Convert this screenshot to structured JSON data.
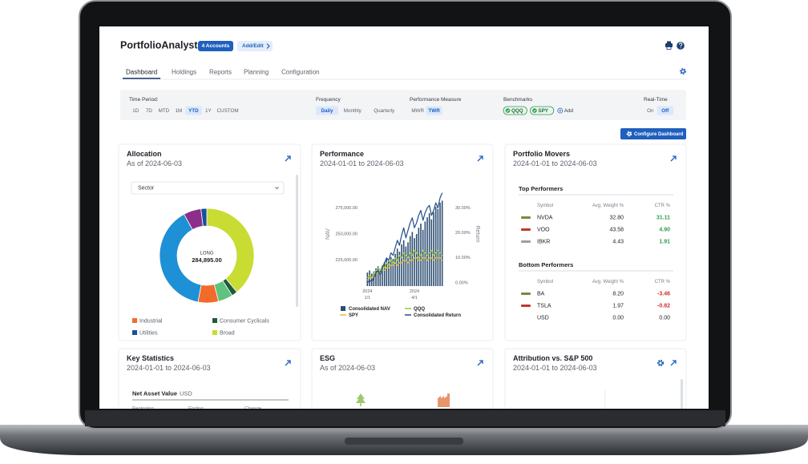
{
  "header": {
    "title": "PortfolioAnalyst",
    "accounts": "4 Accounts",
    "add_edit": "Add/Edit"
  },
  "tabs": {
    "items": [
      "Dashboard",
      "Holdings",
      "Reports",
      "Planning",
      "Configuration"
    ],
    "active": 0
  },
  "filters": [
    {
      "label": "Time Period:",
      "options": [
        "1D",
        "7D",
        "MTD",
        "1M",
        "YTD",
        "1Y",
        "CUSTOM"
      ],
      "selected": 4
    },
    {
      "label": "Frequency",
      "options": [
        "Daily",
        "Monthly",
        "Quarterly"
      ],
      "selected": 0
    },
    {
      "label": "Performance Measure",
      "options": [
        "MWR",
        "TWR"
      ],
      "selected": 1
    },
    {
      "label": "Benchmarks",
      "options": [
        "QQQ",
        "SPY"
      ],
      "add": "Add"
    },
    {
      "label": "Real-Time",
      "options": [
        "On",
        "Off"
      ],
      "selected": 1
    }
  ],
  "configure_button": "Configure Dashboard",
  "allocation": {
    "title": "Allocation",
    "subtitle": "As of 2024-06-03",
    "dropdown": "Sector",
    "chart": {
      "type": "pie",
      "values": [
        39,
        2,
        5,
        7,
        39,
        6,
        2
      ],
      "colors": [
        "#c9dc33",
        "#1b5e3b",
        "#5fc27e",
        "#f26b2a",
        "#1e90d6",
        "#8b2f8b",
        "#1a4f9c"
      ],
      "center_label": "LONG",
      "center_value": "284,895.00"
    },
    "legend": [
      {
        "name": "Industrial",
        "color": "#f26b2a"
      },
      {
        "name": "Consumer Cyclicals",
        "color": "#1b5e3b"
      },
      {
        "name": "Utilities",
        "color": "#1a4f9c"
      },
      {
        "name": "Broad",
        "color": "#c9dc33"
      }
    ]
  },
  "performance": {
    "title": "Performance",
    "subtitle": "2024-01-01 to 2024-06-03",
    "chart": {
      "type": "bar-line",
      "ylabel": "NAV",
      "y2label": "Return",
      "ylim": [
        200000,
        290000
      ],
      "yticks": [
        {
          "value": 275000,
          "label": "275,000.00"
        },
        {
          "value": 250000,
          "label": "250,000.00"
        },
        {
          "value": 225000,
          "label": "225,000.00"
        }
      ],
      "y2lim": [
        -1.3,
        36.2
      ],
      "y2ticks": [
        {
          "value": 30,
          "label": "30.00%"
        },
        {
          "value": 20,
          "label": "20.00%"
        },
        {
          "value": 10,
          "label": "10.00%"
        },
        {
          "value": 0,
          "label": "0.00%"
        }
      ],
      "xticks": [
        {
          "value": 0,
          "year": "2024",
          "date": "1/1"
        },
        {
          "value": 22,
          "year": "2024",
          "date": "4/1"
        }
      ],
      "series": [
        {
          "name": "Consolidated NAV",
          "kind": "bar",
          "color": "#2d4e72",
          "values": [
            213000,
            215000,
            212000,
            214000,
            217000,
            219000,
            216000,
            220000,
            223000,
            226000,
            224000,
            228000,
            226000,
            231000,
            236000,
            233000,
            240000,
            244000,
            238000,
            242000,
            248000,
            252000,
            246000,
            250000,
            256000,
            260000,
            254000,
            262000,
            266000,
            270000,
            264000,
            271000,
            276000,
            274000,
            280000,
            282000
          ]
        },
        {
          "name": "QQQ",
          "kind": "line",
          "axis": "y2",
          "color": "#9bc53d",
          "values": [
            2,
            3,
            2,
            4,
            5,
            6,
            5,
            7,
            6,
            8,
            7,
            9,
            8,
            10,
            9,
            11,
            10,
            12,
            11,
            10,
            12,
            11,
            13,
            12,
            10,
            11,
            13,
            12,
            11,
            12,
            13,
            11,
            12,
            13,
            12,
            11
          ]
        },
        {
          "name": "SPY",
          "kind": "line",
          "axis": "y2",
          "color": "#e8c12b",
          "values": [
            1,
            2,
            2,
            3,
            4,
            4,
            4,
            5,
            5,
            6,
            6,
            7,
            7,
            8,
            7,
            8,
            8,
            9,
            9,
            8,
            9,
            9,
            10,
            10,
            9,
            9,
            10,
            10,
            9,
            10,
            10,
            9,
            10,
            10,
            10,
            9
          ]
        },
        {
          "name": "Consolidated Return",
          "kind": "line",
          "axis": "y2",
          "color": "#1f4f8a",
          "values": [
            0,
            1,
            0.5,
            2,
            4,
            5,
            3,
            6,
            8,
            10,
            9,
            12,
            11,
            14,
            17,
            15,
            19,
            22,
            18,
            21,
            24,
            26,
            22,
            24,
            27,
            29,
            25,
            28,
            30,
            31,
            27,
            29,
            32,
            30,
            34,
            36
          ]
        }
      ]
    }
  },
  "movers": {
    "title": "Portfolio Movers",
    "subtitle": "2024-01-01 to 2024-06-03",
    "tables": [
      {
        "title": "Top Performers",
        "columns": [
          "Symbol",
          "Avg. Weight %",
          "CTR %"
        ],
        "rows": [
          [
            "NVDA",
            "32.80",
            "31.11"
          ],
          [
            "VOO",
            "43.58",
            "4.90"
          ],
          [
            "IBKR",
            "4.43",
            "1.91"
          ]
        ]
      },
      {
        "title": "Bottom Performers",
        "columns": [
          "Symbol",
          "Avg. Weight %",
          "CTR %"
        ],
        "rows": [
          [
            "BA",
            "8.20",
            "-3.46"
          ],
          [
            "TSLA",
            "1.97",
            "-0.82"
          ],
          [
            "USD",
            "0.00",
            "0.00"
          ]
        ]
      }
    ]
  },
  "key_statistics": {
    "title": "Key Statistics",
    "subtitle": "2024-01-01 to 2024-06-03",
    "section": "Net Asset Value",
    "currency": "USD",
    "columns": [
      "Beginning",
      "Ending",
      "Change"
    ]
  },
  "esg": {
    "title": "ESG",
    "subtitle": "As of 2024-06-03"
  },
  "attribution": {
    "title": "Attribution vs. S&P 500",
    "subtitle": "2024-01-01 to 2024-06-03"
  }
}
